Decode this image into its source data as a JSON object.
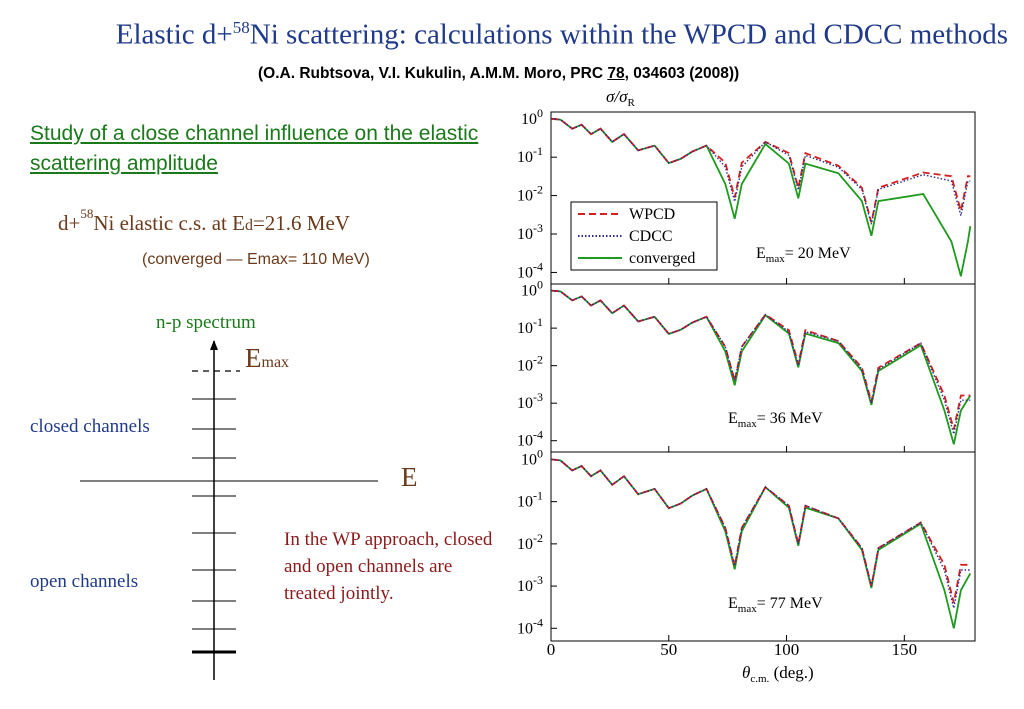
{
  "slide": {
    "title_pre": "Elastic d+",
    "title_sup": "58",
    "title_post": "Ni scattering: calculations within the WPCD and CDCC methods",
    "ref_pre": "(O.A. Rubtsova, V.I. Kukulin, A.M.M. Moro, PRC ",
    "ref_vol": "78",
    "ref_post": ", 034603 (2008))",
    "study": "Study of a close channel influence on the elastic scattering amplitude",
    "dni_pre": "d+",
    "dni_sup": "58",
    "dni_mid": "Ni  elastic c.s. at E",
    "dni_sub": "d",
    "dni_post": "=21.6 MeV",
    "converged_note": "(converged — Emax= 110 MeV)",
    "np_spectrum": "n-p spectrum",
    "emax_E": "E",
    "emax_sub": "max",
    "closed_channels": "closed channels",
    "open_channels": "open channels",
    "E_label": "E",
    "wp_note": "In the WP approach, closed and open channels are treated jointly."
  },
  "colors": {
    "title": "#1f3a8a",
    "green_text": "#1a7a1a",
    "brown_text": "#6b3a1a",
    "dark_red_text": "#8b1a1a",
    "wpcd": "#d62020",
    "cdcc": "#2a2a8a",
    "converged": "#1e9a1e"
  },
  "chart_data": {
    "type": "line",
    "y_title_sigma": "σ/σ",
    "y_title_sub": "R",
    "x_title_theta": "θ",
    "x_title_sub": "c.m.",
    "x_title_units": "(deg.)",
    "xlim": [
      0,
      180
    ],
    "x_ticks": [
      "0",
      "50",
      "100",
      "150"
    ],
    "y_scale": "log",
    "legend": {
      "position": "lower-left of top panel",
      "entries": [
        "WPCD",
        "CDCC",
        "converged"
      ]
    },
    "panels": [
      {
        "label_E": "E",
        "label_sub": "max",
        "label_rest": "= 20 MeV",
        "ylim": [
          5e-05,
          1.5
        ],
        "y_ticks": [
          "10^0",
          "10^-1",
          "10^-2",
          "10^-3",
          "10^-4"
        ],
        "dips": [
          {
            "x": 78,
            "converged": 0.0025,
            "wpcd": 0.009,
            "cdcc": 0.007
          },
          {
            "x": 105,
            "converged": 0.0085,
            "wpcd": 0.016,
            "cdcc": 0.014
          },
          {
            "x": 136,
            "converged": 0.0009,
            "wpcd": 0.002,
            "cdcc": 0.0018
          },
          {
            "x": 174,
            "converged": 8e-05,
            "wpcd": 0.004,
            "cdcc": 0.003
          }
        ],
        "peaks": [
          {
            "x": 91,
            "converged": 0.22,
            "wpcd": 0.25,
            "cdcc": 0.25
          },
          {
            "x": 122,
            "converged": 0.038,
            "wpcd": 0.06,
            "cdcc": 0.055
          },
          {
            "x": 158,
            "converged": 0.011,
            "wpcd": 0.04,
            "cdcc": 0.035
          }
        ]
      },
      {
        "label_E": "E",
        "label_sub": "max",
        "label_rest": "= 36 MeV",
        "ylim": [
          5e-05,
          1.5
        ],
        "y_ticks": [
          "10^0",
          "10^-1",
          "10^-2",
          "10^-3",
          "10^-4"
        ],
        "dips": [
          {
            "x": 78,
            "converged": 0.003,
            "wpcd": 0.004,
            "cdcc": 0.004
          },
          {
            "x": 105,
            "converged": 0.009,
            "wpcd": 0.011,
            "cdcc": 0.01
          },
          {
            "x": 136,
            "converged": 0.0009,
            "wpcd": 0.0011,
            "cdcc": 0.001
          },
          {
            "x": 171,
            "converged": 8e-05,
            "wpcd": 0.0002,
            "cdcc": 0.00015
          }
        ],
        "peaks": [
          {
            "x": 91,
            "converged": 0.22,
            "wpcd": 0.23,
            "cdcc": 0.23
          },
          {
            "x": 122,
            "converged": 0.04,
            "wpcd": 0.045,
            "cdcc": 0.045
          },
          {
            "x": 157,
            "converged": 0.035,
            "wpcd": 0.04,
            "cdcc": 0.04
          }
        ]
      },
      {
        "label_E": "E",
        "label_sub": "max",
        "label_rest": "= 77 MeV",
        "ylim": [
          5e-05,
          1.5
        ],
        "y_ticks": [
          "10^0",
          "10^-1",
          "10^-2",
          "10^-3",
          "10^-4"
        ],
        "dips": [
          {
            "x": 78,
            "converged": 0.0025,
            "wpcd": 0.003,
            "cdcc": 0.003
          },
          {
            "x": 105,
            "converged": 0.009,
            "wpcd": 0.01,
            "cdcc": 0.01
          },
          {
            "x": 136,
            "converged": 0.0009,
            "wpcd": 0.001,
            "cdcc": 0.001
          },
          {
            "x": 171,
            "converged": 0.0001,
            "wpcd": 0.0004,
            "cdcc": 0.0003
          }
        ],
        "peaks": [
          {
            "x": 91,
            "converged": 0.22,
            "wpcd": 0.22,
            "cdcc": 0.22
          },
          {
            "x": 122,
            "converged": 0.04,
            "wpcd": 0.04,
            "cdcc": 0.04
          },
          {
            "x": 157,
            "converged": 0.03,
            "wpcd": 0.032,
            "cdcc": 0.032
          }
        ]
      }
    ]
  }
}
